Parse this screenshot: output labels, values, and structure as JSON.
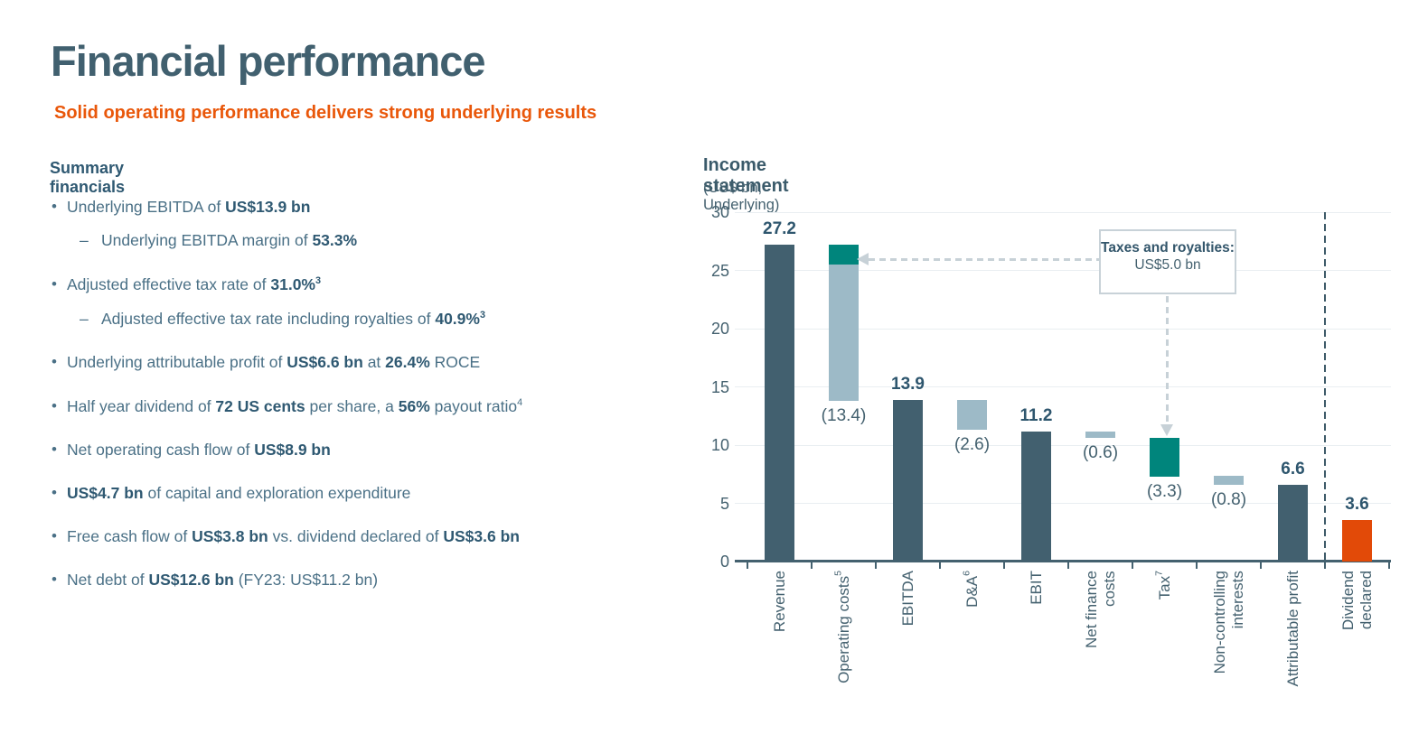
{
  "page": {
    "title": "Financial performance",
    "subtitle": "Solid operating performance delivers strong underlying results"
  },
  "summary": {
    "heading": "Summary financials",
    "items": [
      {
        "indent": 0,
        "marker": "•",
        "runs": [
          {
            "t": "Underlying EBITDA of "
          },
          {
            "t": "US$13.9 bn",
            "b": true
          }
        ]
      },
      {
        "indent": 1,
        "marker": "–",
        "runs": [
          {
            "t": "Underlying EBITDA margin of "
          },
          {
            "t": "53.3%",
            "b": true
          }
        ]
      },
      {
        "indent": 0,
        "marker": "•",
        "runs": [
          {
            "t": "Adjusted effective tax rate of "
          },
          {
            "t": "31.0%",
            "b": true
          },
          {
            "t": "3",
            "b": true,
            "s": true
          }
        ]
      },
      {
        "indent": 1,
        "marker": "–",
        "runs": [
          {
            "t": "Adjusted effective tax rate including royalties of "
          },
          {
            "t": "40.9%",
            "b": true
          },
          {
            "t": "3",
            "b": true,
            "s": true
          }
        ]
      },
      {
        "indent": 0,
        "marker": "•",
        "runs": [
          {
            "t": "Underlying attributable profit of "
          },
          {
            "t": "US$6.6 bn",
            "b": true
          },
          {
            "t": " at "
          },
          {
            "t": "26.4%",
            "b": true
          },
          {
            "t": " ROCE"
          }
        ]
      },
      {
        "indent": 0,
        "marker": "•",
        "runs": [
          {
            "t": "Half year dividend of "
          },
          {
            "t": "72 US cents",
            "b": true
          },
          {
            "t": " per share, a "
          },
          {
            "t": "56%",
            "b": true
          },
          {
            "t": " payout ratio"
          },
          {
            "t": "4",
            "s": true
          }
        ]
      },
      {
        "indent": 0,
        "marker": "•",
        "runs": [
          {
            "t": "Net operating cash flow of "
          },
          {
            "t": "US$8.9 bn",
            "b": true
          }
        ]
      },
      {
        "indent": 0,
        "marker": "•",
        "runs": [
          {
            "t": "US$4.7 bn",
            "b": true
          },
          {
            "t": " of capital and exploration expenditure"
          }
        ]
      },
      {
        "indent": 0,
        "marker": "•",
        "runs": [
          {
            "t": "Free cash flow of "
          },
          {
            "t": "US$3.8 bn",
            "b": true
          },
          {
            "t": " vs. dividend declared of "
          },
          {
            "t": "US$3.6 bn",
            "b": true
          }
        ]
      },
      {
        "indent": 0,
        "marker": "•",
        "runs": [
          {
            "t": "Net debt of "
          },
          {
            "t": "US$12.6 bn",
            "b": true
          },
          {
            "t": " (FY23: US$11.2 bn)"
          }
        ]
      }
    ]
  },
  "chart_data": {
    "type": "bar",
    "subtype": "waterfall",
    "title": "Income statement",
    "subtitle": "(US$ bn, Underlying)",
    "ylabel": "US$ bn",
    "ylim": [
      0,
      30
    ],
    "yticks": [
      0,
      5,
      10,
      15,
      20,
      25,
      30
    ],
    "grid": true,
    "colors": {
      "total_bar": "#42606F",
      "decrease_bar": "#9DBAC7",
      "tax_royalty_bar": "#00857C",
      "dividend_bar": "#E24A08",
      "value_label_positive": "#2E566E",
      "value_label_negative": "#44616F",
      "title_orange": "#E9570A"
    },
    "bars": [
      {
        "label_lines": [
          "Revenue"
        ],
        "footnote": "",
        "value": 27.2,
        "value_label": "27.2",
        "label_pos": "above",
        "segments": [
          {
            "from": 0,
            "to": 27.2,
            "color": "total_bar"
          }
        ]
      },
      {
        "label_lines": [
          "Operating costs"
        ],
        "footnote": "5",
        "value": -13.4,
        "value_label": "(13.4)",
        "label_pos": "below",
        "segments": [
          {
            "from": 13.8,
            "to": 25.5,
            "color": "decrease_bar"
          },
          {
            "from": 25.5,
            "to": 27.2,
            "color": "tax_royalty_bar"
          }
        ]
      },
      {
        "label_lines": [
          "EBITDA"
        ],
        "footnote": "",
        "value": 13.9,
        "value_label": "13.9",
        "label_pos": "above",
        "segments": [
          {
            "from": 0,
            "to": 13.9,
            "color": "total_bar"
          }
        ]
      },
      {
        "label_lines": [
          "D&A"
        ],
        "footnote": "6",
        "value": -2.6,
        "value_label": "(2.6)",
        "label_pos": "below",
        "segments": [
          {
            "from": 11.3,
            "to": 13.9,
            "color": "decrease_bar"
          }
        ]
      },
      {
        "label_lines": [
          "EBIT"
        ],
        "footnote": "",
        "value": 11.2,
        "value_label": "11.2",
        "label_pos": "above",
        "segments": [
          {
            "from": 0,
            "to": 11.2,
            "color": "total_bar"
          }
        ]
      },
      {
        "label_lines": [
          "Net finance",
          "costs"
        ],
        "footnote": "",
        "value": -0.6,
        "value_label": "(0.6)",
        "label_pos": "below",
        "segments": [
          {
            "from": 10.6,
            "to": 11.2,
            "color": "decrease_bar"
          }
        ]
      },
      {
        "label_lines": [
          "Tax"
        ],
        "footnote": "7",
        "value": -3.3,
        "value_label": "(3.3)",
        "label_pos": "below",
        "segments": [
          {
            "from": 7.3,
            "to": 10.6,
            "color": "tax_royalty_bar"
          }
        ]
      },
      {
        "label_lines": [
          "Non-controlling",
          "interests"
        ],
        "footnote": "",
        "value": -0.8,
        "value_label": "(0.8)",
        "label_pos": "below",
        "segments": [
          {
            "from": 6.6,
            "to": 7.4,
            "color": "decrease_bar"
          }
        ]
      },
      {
        "label_lines": [
          "Attributable profit"
        ],
        "footnote": "",
        "value": 6.6,
        "value_label": "6.6",
        "label_pos": "above",
        "segments": [
          {
            "from": 0,
            "to": 6.6,
            "color": "total_bar"
          }
        ]
      },
      {
        "label_lines": [
          "Dividend",
          "declared"
        ],
        "footnote": "",
        "value": 3.6,
        "value_label": "3.6",
        "label_pos": "above",
        "segments": [
          {
            "from": 0,
            "to": 3.6,
            "color": "dividend_bar"
          }
        ]
      }
    ],
    "separator_before_index": 9,
    "annotation": {
      "text_bold": "Taxes and royalties:",
      "text_value": "US$5.0 bn",
      "points_to": [
        "Operating costs royalty segment",
        "Tax bar"
      ]
    }
  }
}
